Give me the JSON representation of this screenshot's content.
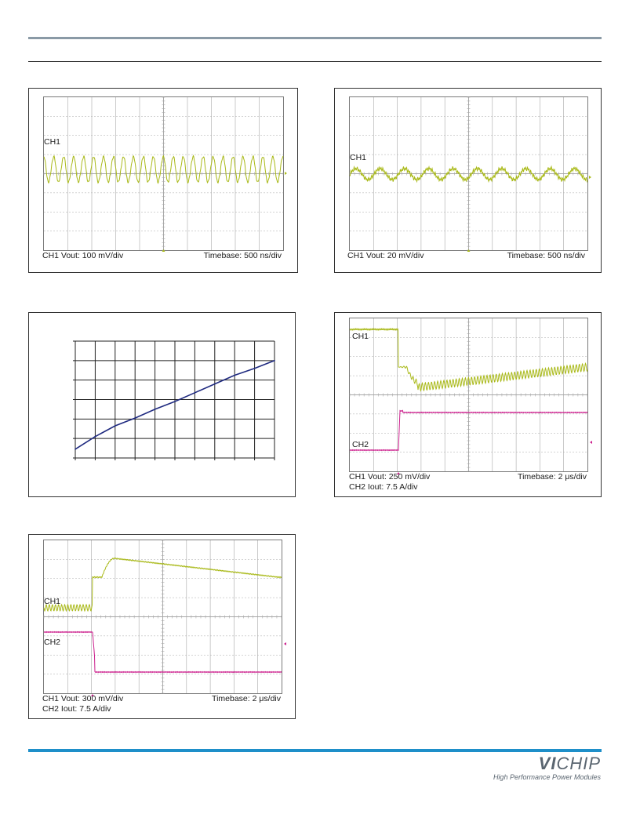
{
  "colors": {
    "ch1": "#a9b918",
    "ch2": "#cc1f8d",
    "curve": "#1f2a80",
    "grid": "#a8a8a8",
    "header_rule": "#8a9aa6",
    "footer_rule": "#1e8fc9"
  },
  "scope1": {
    "ch1_tag": "CH1",
    "caption_left": "CH1 Vout: 100 mV/div",
    "caption_right": "Timebase: 500 ns/div"
  },
  "scope2": {
    "ch1_tag": "CH1",
    "caption_left": "CH1 Vout: 20 mV/div",
    "caption_right": "Timebase: 500  ns/div"
  },
  "scope3": {
    "ch1_tag": "CH1",
    "ch2_tag": "CH2",
    "caption_left": "CH1 Vout: 250 mV/div",
    "caption_right": "Timebase: 2  μs/div",
    "caption_line2": "CH2 Iout: 7.5 A/div"
  },
  "scope4": {
    "ch1_tag": "CH1",
    "ch2_tag": "CH2",
    "caption_left": "CH1 Vout: 300 mV/div",
    "caption_right": "Timebase: 2  μs/div",
    "caption_line2": "CH2 Iout: 7.5 A/div"
  },
  "chart_data": {
    "type": "line",
    "title": "",
    "xlabel": "",
    "ylabel": "",
    "grid": true,
    "xlim": [
      0,
      10
    ],
    "ylim": [
      0,
      6
    ],
    "series": [
      {
        "x": [
          0,
          1,
          2,
          3,
          4,
          5,
          6,
          7,
          8,
          9,
          10
        ],
        "values": [
          0.45,
          1.1,
          1.65,
          2.05,
          2.5,
          2.9,
          3.35,
          3.8,
          4.25,
          4.6,
          5.0
        ]
      }
    ]
  },
  "footer": {
    "logo_bold": "VI",
    "logo_rest": "CHIP",
    "tagline": "High Performance Power Modules"
  }
}
